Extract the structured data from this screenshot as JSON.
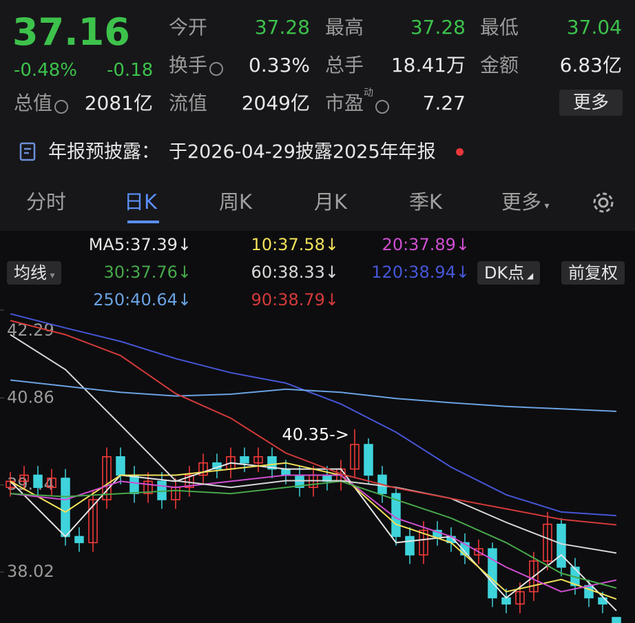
{
  "quote": {
    "price": "37.16",
    "change_pct": "-0.48%",
    "change": "-0.18"
  },
  "stats": [
    {
      "label": "今开",
      "value": "37.28"
    },
    {
      "label": "最高",
      "value": "37.28"
    },
    {
      "label": "最低",
      "value": "37.04"
    },
    {
      "label": "换手",
      "value": "0.33%"
    },
    {
      "label": "总手",
      "value": "18.41万"
    },
    {
      "label": "金额",
      "value": "6.83亿"
    },
    {
      "label": "总值",
      "value": "2081亿"
    },
    {
      "label": "流值",
      "value": "2049亿"
    },
    {
      "label": "市盈",
      "sup": "动",
      "value": "7.27"
    }
  ],
  "more_button": "更多",
  "notice": {
    "title": "年报预披露：",
    "text": "于2026-04-29披露2025年年报"
  },
  "tabs": [
    "分时",
    "日K",
    "周K",
    "月K",
    "季K",
    "更多"
  ],
  "controls": {
    "ma_button": "均线",
    "dk": "DK点",
    "adjust": "前复权"
  },
  "chart_data": {
    "type": "candlestick",
    "open": [
      39.4,
      39.5,
      39.6,
      39.4,
      39.55,
      38.6,
      38.5,
      39.2,
      39.9,
      39.6,
      39.3,
      39.5,
      39.2,
      39.4,
      39.6,
      39.8,
      39.7,
      39.9,
      39.8,
      39.9,
      39.7,
      39.6,
      39.4,
      39.6,
      39.5,
      39.7,
      40.1,
      39.6,
      39.3,
      38.6,
      38.3,
      38.7,
      38.6,
      38.5,
      38.3,
      38.4,
      37.6,
      37.5,
      37.7,
      38.2,
      38.8,
      38.1,
      37.8,
      37.6,
      37.28
    ],
    "high": [
      39.65,
      39.75,
      39.75,
      39.7,
      39.7,
      38.75,
      39.35,
      40.05,
      40.05,
      39.75,
      39.65,
      39.65,
      39.55,
      39.75,
      39.95,
      39.95,
      40.05,
      40.05,
      40.05,
      40.05,
      39.85,
      39.75,
      39.75,
      39.75,
      39.85,
      40.35,
      40.2,
      39.75,
      39.4,
      38.75,
      38.85,
      38.85,
      38.75,
      38.65,
      38.55,
      38.5,
      37.75,
      37.85,
      38.35,
      39.0,
      38.9,
      38.25,
      37.9,
      37.7,
      37.28
    ],
    "low": [
      39.25,
      39.35,
      39.25,
      39.25,
      38.45,
      38.35,
      38.35,
      39.05,
      39.45,
      39.15,
      39.15,
      39.05,
      39.05,
      39.25,
      39.45,
      39.55,
      39.55,
      39.65,
      39.65,
      39.55,
      39.45,
      39.25,
      39.25,
      39.35,
      39.35,
      39.55,
      39.45,
      39.15,
      38.45,
      38.15,
      38.15,
      38.45,
      38.35,
      38.15,
      38.15,
      37.45,
      37.35,
      37.35,
      37.55,
      38.05,
      37.95,
      37.65,
      37.45,
      37.35,
      37.04
    ],
    "close": [
      39.5,
      39.6,
      39.4,
      39.55,
      38.6,
      38.5,
      39.2,
      39.9,
      39.6,
      39.3,
      39.5,
      39.2,
      39.4,
      39.6,
      39.8,
      39.7,
      39.9,
      39.8,
      39.9,
      39.7,
      39.6,
      39.4,
      39.6,
      39.5,
      39.7,
      40.1,
      39.6,
      39.3,
      38.6,
      38.3,
      38.7,
      38.6,
      38.5,
      38.3,
      38.4,
      37.6,
      37.5,
      37.7,
      38.2,
      38.8,
      38.1,
      37.8,
      37.6,
      37.5,
      37.16
    ],
    "up_color": "#ff3d3d",
    "down_color": "#3fd3dc",
    "annotation": "40.35->",
    "ylim": [
      37.19,
      42.29
    ],
    "yticks": [
      38.02,
      39.44,
      40.86,
      42.29
    ],
    "series": [
      {
        "name": "MA5:37.39↓",
        "color": "#e6e6e6",
        "values": [
          39.5,
          38.6,
          39.6,
          39.5,
          39.8,
          39.7,
          39.7,
          38.5,
          38.6,
          37.6,
          38.3,
          37.39
        ]
      },
      {
        "name": "10:37.58↓",
        "color": "#f2e15a",
        "values": [
          39.5,
          39.0,
          39.6,
          39.6,
          39.7,
          39.8,
          39.6,
          38.8,
          38.5,
          37.7,
          37.9,
          37.58
        ]
      },
      {
        "name": "20:37.89↓",
        "color": "#cf4fd1",
        "values": [
          39.3,
          39.2,
          39.5,
          39.4,
          39.5,
          39.6,
          39.6,
          38.9,
          38.6,
          38.1,
          37.7,
          37.89
        ]
      },
      {
        "name": "30:37.76↓",
        "color": "#47a84a",
        "values": [
          39.3,
          39.25,
          39.3,
          39.35,
          39.3,
          39.4,
          39.5,
          39.2,
          38.9,
          38.5,
          38.0,
          37.76
        ]
      },
      {
        "name": "60:38.33↓",
        "color": "#d8d8d8",
        "values": [
          41.89,
          41.32,
          40.42,
          39.51,
          39.4,
          39.51,
          39.51,
          39.4,
          39.22,
          38.83,
          38.48,
          38.33
        ]
      },
      {
        "name": "120:38.94↓",
        "color": "#4656d6",
        "values": [
          42.23,
          42.0,
          41.78,
          41.5,
          41.27,
          41.1,
          40.76,
          40.3,
          39.73,
          39.28,
          39.0,
          38.94
        ]
      },
      {
        "name": "250:40.64↓",
        "color": "#6aa2e2",
        "values": [
          41.15,
          41.05,
          40.95,
          40.89,
          40.92,
          41.0,
          40.95,
          40.85,
          40.78,
          40.72,
          40.68,
          40.64
        ]
      },
      {
        "name": "90:38.79↓",
        "color": "#d33a3a",
        "values": [
          42.12,
          41.89,
          41.55,
          40.93,
          40.53,
          39.96,
          39.62,
          39.39,
          39.22,
          39.05,
          38.88,
          38.79
        ]
      }
    ]
  }
}
